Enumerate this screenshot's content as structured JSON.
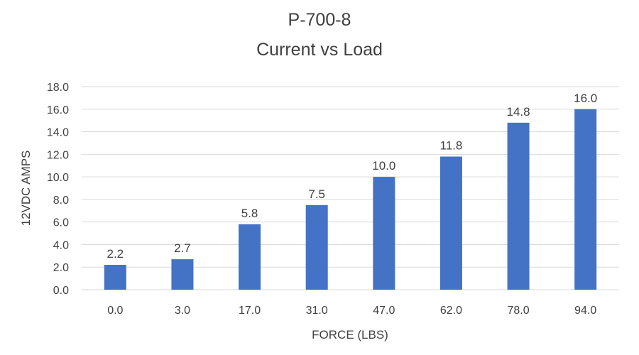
{
  "chart_data": {
    "type": "bar",
    "title": "P-700-8",
    "subtitle": "Current vs Load",
    "xlabel": "FORCE (LBS)",
    "ylabel": "12VDC AMPS",
    "categories": [
      "0.0",
      "3.0",
      "17.0",
      "31.0",
      "47.0",
      "62.0",
      "78.0",
      "94.0"
    ],
    "values": [
      2.2,
      2.7,
      5.8,
      7.5,
      10.0,
      11.8,
      14.8,
      16.0
    ],
    "data_labels": [
      "2.2",
      "2.7",
      "5.8",
      "7.5",
      "10.0",
      "11.8",
      "14.8",
      "16.0"
    ],
    "yticks": [
      "0.0",
      "2.0",
      "4.0",
      "6.0",
      "8.0",
      "10.0",
      "12.0",
      "14.0",
      "16.0",
      "18.0"
    ],
    "ylim": [
      0,
      18
    ],
    "grid": true,
    "legend": "none",
    "colors": {
      "bar": "#4472C4",
      "grid": "#D9D9D9",
      "text": "#404040"
    }
  }
}
